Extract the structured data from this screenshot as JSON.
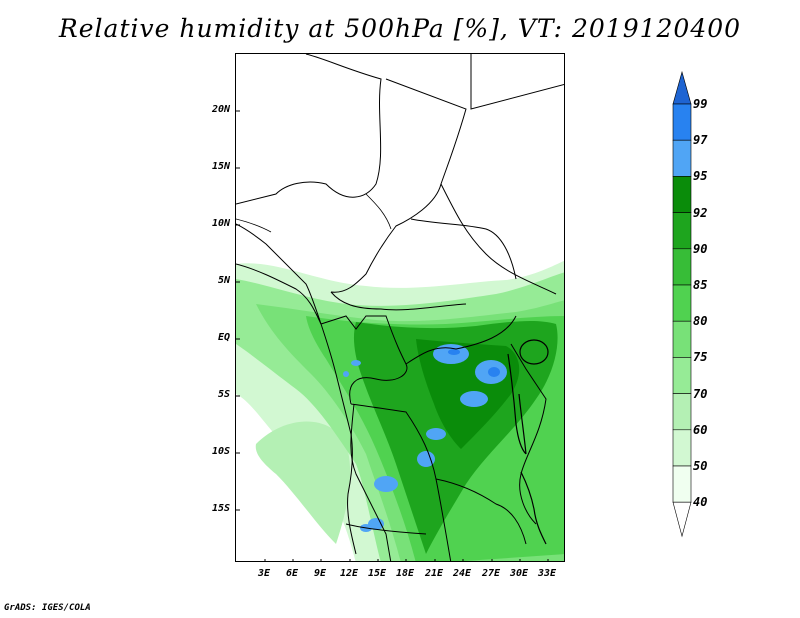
{
  "title": "Relative humidity at 500hPa [%], VT: 2019120400",
  "credit": "GrADS: IGES/COLA",
  "lat_labels": [
    "20N",
    "15N",
    "10N",
    "5N",
    "EQ",
    "5S",
    "10S",
    "15S"
  ],
  "lon_labels": [
    "3E",
    "6E",
    "9E",
    "12E",
    "15E",
    "18E",
    "21E",
    "24E",
    "27E",
    "30E",
    "33E"
  ],
  "colorbar": {
    "levels": [
      "99",
      "97",
      "95",
      "92",
      "90",
      "85",
      "80",
      "75",
      "70",
      "60",
      "50",
      "40"
    ],
    "colors": [
      "#1e64d2",
      "#2882f0",
      "#50a5f5",
      "#0a8c0a",
      "#1ea51e",
      "#37bd37",
      "#50d250",
      "#78e178",
      "#96eb96",
      "#b4f0b4",
      "#d2f8d2",
      "#f0fff0"
    ]
  }
}
